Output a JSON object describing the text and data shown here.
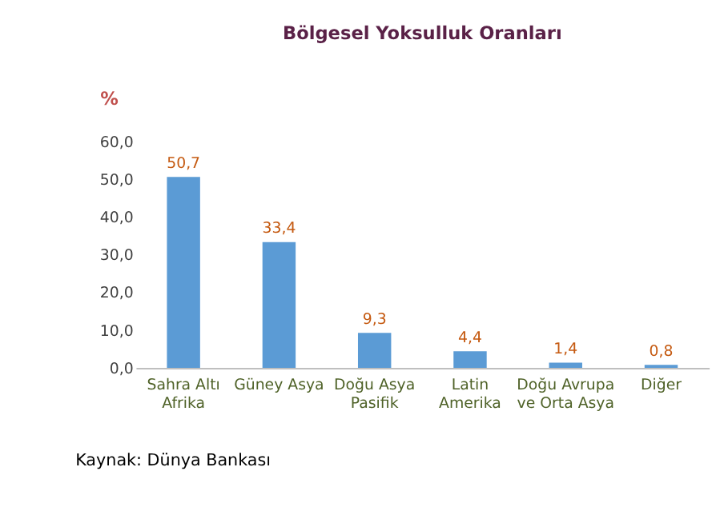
{
  "chart_data": {
    "type": "bar",
    "title": "Bölgesel Yoksulluk Oranları",
    "ylabel": "%",
    "categories": [
      "Sahra Altı Afrika",
      "Güney Asya",
      "Doğu Asya Pasifik",
      "Latin Amerika",
      "Doğu Avrupa ve Orta Asya",
      "Diğer"
    ],
    "values": [
      50.7,
      33.4,
      9.3,
      4.4,
      1.4,
      0.8
    ],
    "value_labels": [
      "50,7",
      "33,4",
      "9,3",
      "4,4",
      "1,4",
      "0,8"
    ],
    "color": "#5b9bd5",
    "ylim": [
      0,
      60
    ],
    "yticks": [
      {
        "value": 0,
        "label": "0,0"
      },
      {
        "value": 10,
        "label": "10,0"
      },
      {
        "value": 20,
        "label": "20,0"
      },
      {
        "value": 30,
        "label": "30,0"
      },
      {
        "value": 40,
        "label": "40,0"
      },
      {
        "value": 50,
        "label": "50,0"
      },
      {
        "value": 60,
        "label": "60,0"
      }
    ],
    "grid": false,
    "annotations": [
      "Kaynak: Dünya Bankası"
    ]
  }
}
